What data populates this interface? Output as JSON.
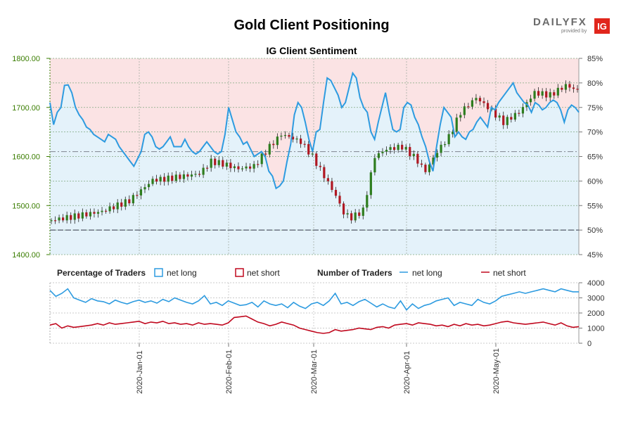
{
  "header": {
    "title": "Gold Client Positioning",
    "logo_text": "DAILYFX",
    "logo_sub": "provided by",
    "logo_badge": "IG"
  },
  "chart_data": [
    {
      "type": "candlestick+line",
      "subtitle": "IG Client Sentiment",
      "price_axis": {
        "side": "left",
        "ylim": [
          1400,
          1800
        ],
        "ticks": [
          "1400.00",
          "1500.00",
          "1600.00",
          "1700.00",
          "1800.00"
        ]
      },
      "sentiment_axis": {
        "side": "right",
        "ylim": [
          45,
          85
        ],
        "ticks": [
          "45%",
          "50%",
          "55%",
          "60%",
          "65%",
          "70%",
          "75%",
          "80%",
          "85%"
        ]
      },
      "reference_lines": [
        {
          "value_pct": 50
        },
        {
          "value_pct": 66
        }
      ],
      "dates": [
        "2019-12-01",
        "2020-01-01",
        "2020-02-01",
        "2020-03-01",
        "2020-04-01",
        "2020-05-01",
        "2020-05-31"
      ],
      "net_long_pct": [
        76,
        71.5,
        74,
        75,
        79.5,
        79.6,
        78,
        75,
        73.5,
        72.5,
        71,
        70.5,
        69.5,
        69,
        68.5,
        68,
        69.5,
        69,
        68.5,
        67,
        66,
        65,
        64,
        63,
        64.5,
        66,
        69.5,
        70,
        69,
        67,
        66.5,
        67,
        68,
        69,
        67,
        67,
        67,
        68.5,
        67,
        66,
        65.5,
        66,
        67,
        68,
        67,
        66,
        65.5,
        66,
        69.5,
        75,
        72.5,
        70,
        69,
        67.5,
        68,
        66.5,
        65,
        65.5,
        66,
        65,
        62,
        61,
        58.5,
        59,
        60,
        64,
        67.5,
        73.5,
        76,
        75,
        72,
        68.5,
        66,
        70,
        70.5,
        76,
        81,
        80.5,
        79,
        77.5,
        75,
        76,
        79,
        82,
        81,
        77,
        75,
        74,
        70,
        68.5,
        72,
        75,
        78,
        74,
        70.5,
        70,
        70.5,
        75,
        76,
        75.5,
        73,
        71.5,
        69,
        67,
        64,
        62,
        67,
        71.5,
        75,
        74,
        73,
        69,
        70,
        69,
        68.5,
        70,
        70.5,
        72,
        73,
        72,
        71,
        75,
        74.5,
        76,
        77,
        78,
        79,
        80,
        78,
        77,
        76,
        75.5,
        74,
        76,
        75.5,
        74.5,
        75,
        76,
        76.5,
        76,
        74.5,
        72,
        74.5,
        75.5,
        75,
        74
      ],
      "number_of_traders": {
        "ylim": [
          0,
          4000
        ],
        "ticks": [
          "0",
          "1000",
          "2000",
          "3000",
          "4000"
        ],
        "net_long": [
          3500,
          3100,
          3300,
          3600,
          3000,
          2850,
          2700,
          2950,
          2800,
          2750,
          2600,
          2850,
          2700,
          2600,
          2750,
          2850,
          2700,
          2800,
          2650,
          2900,
          2750,
          3000,
          2850,
          2700,
          2600,
          2800,
          3150,
          2600,
          2700,
          2500,
          2800,
          2650,
          2500,
          2550,
          2700,
          2400,
          2800,
          2600,
          2500,
          2600,
          2350,
          2700,
          2450,
          2300,
          2600,
          2700,
          2500,
          2800,
          3300,
          2600,
          2700,
          2500,
          2750,
          2900,
          2650,
          2400,
          2600,
          2400,
          2300,
          2800,
          2200,
          2600,
          2300,
          2500,
          2600,
          2800,
          2900,
          3000,
          2500,
          2700,
          2600,
          2500,
          2900,
          2700,
          2600,
          2800,
          3100,
          3200,
          3300,
          3400,
          3300,
          3400,
          3500,
          3600,
          3500,
          3400,
          3600,
          3500,
          3400,
          3400
        ],
        "net_short": [
          1200,
          1300,
          1000,
          1150,
          1050,
          1100,
          1150,
          1200,
          1300,
          1200,
          1350,
          1250,
          1300,
          1350,
          1400,
          1450,
          1300,
          1400,
          1350,
          1450,
          1300,
          1350,
          1250,
          1300,
          1200,
          1350,
          1250,
          1300,
          1250,
          1200,
          1350,
          1700,
          1750,
          1800,
          1600,
          1400,
          1300,
          1150,
          1250,
          1400,
          1300,
          1200,
          1000,
          900,
          800,
          700,
          650,
          700,
          900,
          800,
          850,
          900,
          1000,
          950,
          900,
          1050,
          1100,
          1000,
          1200,
          1250,
          1300,
          1200,
          1350,
          1300,
          1250,
          1150,
          1200,
          1100,
          1250,
          1150,
          1300,
          1200,
          1250,
          1150,
          1200,
          1300,
          1400,
          1450,
          1350,
          1300,
          1250,
          1300,
          1350,
          1400,
          1300,
          1200,
          1350,
          1150,
          1050,
          1100
        ]
      },
      "legend": {
        "percentage_title": "Percentage of Traders",
        "number_title": "Number of Traders",
        "net_long": "net long",
        "net_short": "net short"
      },
      "x_ticks": [
        "2020-Jan-01",
        "2020-Feb-01",
        "2020-Mar-01",
        "2020-Apr-01",
        "2020-May-01"
      ],
      "colors": {
        "net_long_line": "#2d9be0",
        "net_short_line": "#c0081e",
        "long_area": "#e4f2fa",
        "short_area": "#fbe3e4",
        "candle_up": "#2e7d1e",
        "candle_down": "#b01822",
        "price_axis": "#3a7d00"
      }
    }
  ]
}
